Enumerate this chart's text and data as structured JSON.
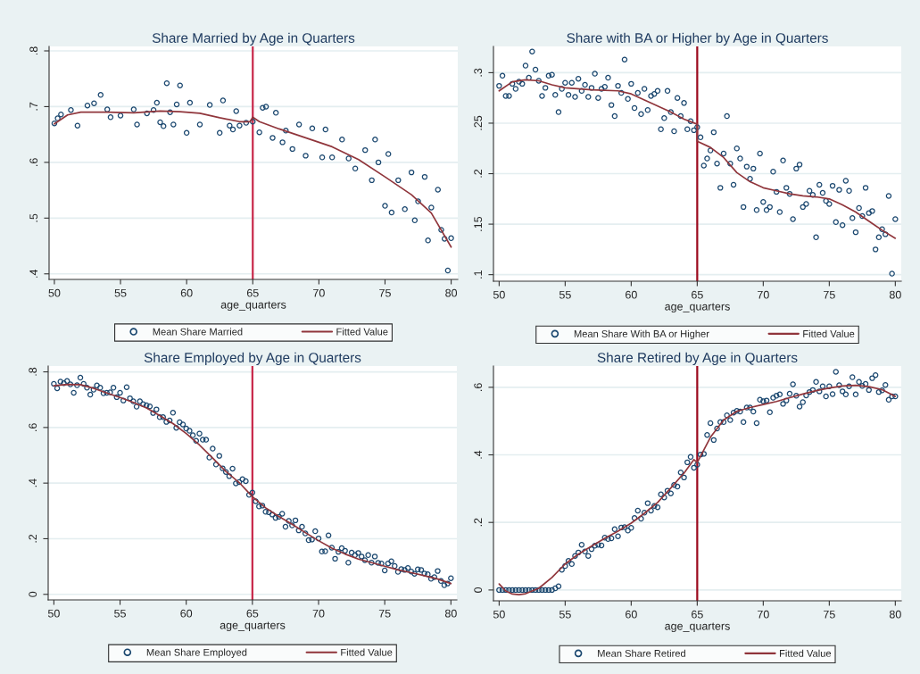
{
  "chart_data": [
    {
      "type": "scatter",
      "title": "Share Married by Age in Quarters",
      "xlabel": "age_quarters",
      "grid": "y",
      "legend": "bottom",
      "xlim": [
        49.6,
        80.5
      ],
      "xticks": [
        50,
        55,
        60,
        65,
        70,
        75,
        80
      ],
      "ylim": [
        0.39,
        0.808
      ],
      "yticks": [
        {
          "value": 0.4,
          "label": ".4"
        },
        {
          "value": 0.5,
          "label": ".5"
        },
        {
          "value": 0.6,
          "label": ".6"
        },
        {
          "value": 0.7,
          "label": ".7"
        },
        {
          "value": 0.8,
          "label": ".8"
        }
      ],
      "ref_lines": [
        {
          "axis": "x",
          "value": 65,
          "color": "#c8284a"
        }
      ],
      "series": [
        {
          "marker": "circle",
          "name": "Mean Share Married",
          "color": "#1a476f",
          "x": [
            50,
            50.25,
            50.5,
            51.25,
            51.75,
            52.5,
            53,
            53.5,
            54,
            54.25,
            55,
            56,
            56.25,
            57,
            57.5,
            57.75,
            58,
            58.25,
            58.5,
            58.75,
            59,
            59.25,
            59.5,
            60,
            60.25,
            61,
            61.75,
            62.5,
            62.75,
            63.25,
            63.5,
            63.75,
            64,
            64.5,
            65,
            65.5,
            65.75,
            66,
            66.5,
            66.75,
            67.25,
            67.5,
            68,
            68.5,
            69,
            69.5,
            70.25,
            70.5,
            71,
            71.75,
            72.25,
            72.75,
            73.5,
            74,
            74.25,
            74.5,
            75,
            75.25,
            75.5,
            76,
            76.5,
            77,
            77.25,
            77.5,
            78,
            78.25,
            78.5,
            79,
            79.25,
            79.5,
            79.75,
            80
          ],
          "values": [
            0.67,
            0.679,
            0.686,
            0.694,
            0.666,
            0.702,
            0.706,
            0.721,
            0.695,
            0.681,
            0.684,
            0.695,
            0.668,
            0.688,
            0.694,
            0.707,
            0.672,
            0.665,
            0.742,
            0.69,
            0.668,
            0.704,
            0.738,
            0.653,
            0.707,
            0.668,
            0.703,
            0.653,
            0.711,
            0.666,
            0.659,
            0.692,
            0.666,
            0.671,
            0.673,
            0.654,
            0.698,
            0.7,
            0.644,
            0.689,
            0.636,
            0.657,
            0.624,
            0.668,
            0.612,
            0.661,
            0.609,
            0.659,
            0.609,
            0.641,
            0.607,
            0.589,
            0.622,
            0.568,
            0.641,
            0.6,
            0.522,
            0.615,
            0.51,
            0.568,
            0.516,
            0.582,
            0.496,
            0.53,
            0.574,
            0.46,
            0.519,
            0.551,
            0.479,
            0.463,
            0.406,
            0.464
          ]
        },
        {
          "type": "line",
          "name": "Fitted Value",
          "color": "#90353b",
          "x": [
            50,
            51,
            52,
            54,
            56,
            58,
            59.5,
            61,
            62.5,
            64,
            64.8,
            65,
            65.5,
            67,
            69,
            71,
            73,
            75,
            77,
            78.5,
            80
          ],
          "values": [
            0.669,
            0.685,
            0.69,
            0.69,
            0.689,
            0.692,
            0.691,
            0.688,
            0.68,
            0.673,
            0.673,
            0.681,
            0.673,
            0.66,
            0.644,
            0.628,
            0.605,
            0.574,
            0.542,
            0.509,
            0.448
          ]
        }
      ]
    },
    {
      "type": "scatter",
      "title": "Share with BA or Higher by Age in Quarters",
      "xlabel": "age_quarters",
      "grid": "y",
      "legend": "bottom",
      "xlim": [
        49.57,
        80.45
      ],
      "xticks": [
        50,
        55,
        60,
        65,
        70,
        75,
        80
      ],
      "ylim": [
        0.0935,
        0.326
      ],
      "yticks": [
        {
          "value": 0.1,
          "label": ".1"
        },
        {
          "value": 0.15,
          "label": ".15"
        },
        {
          "value": 0.2,
          "label": ".2"
        },
        {
          "value": 0.25,
          "label": ".25"
        },
        {
          "value": 0.3,
          "label": ".3"
        }
      ],
      "ref_lines": [
        {
          "axis": "x",
          "value": 65,
          "color": "#9b0a1e"
        }
      ],
      "x": [
        50,
        50.25,
        50.5,
        50.75,
        51,
        51.25,
        51.5,
        51.75,
        52,
        52.25,
        52.5,
        52.75,
        53,
        53.25,
        53.5,
        53.75,
        54,
        54.25,
        54.5,
        54.75,
        55,
        55.25,
        55.5,
        55.75,
        56,
        56.25,
        56.5,
        56.75,
        57,
        57.25,
        57.5,
        57.75,
        58,
        58.25,
        58.5,
        58.75,
        59,
        59.25,
        59.5,
        59.75,
        60,
        60.25,
        60.5,
        60.75,
        61,
        61.25,
        61.5,
        61.75,
        62,
        62.25,
        62.5,
        62.75,
        63,
        63.25,
        63.5,
        63.75,
        64,
        64.25,
        64.5,
        64.75,
        65,
        65.25,
        65.5,
        65.75,
        66,
        66.25,
        66.5,
        66.75,
        67,
        67.25,
        67.5,
        67.75,
        68,
        68.25,
        68.5,
        68.75,
        69,
        69.25,
        69.5,
        69.75,
        70,
        70.25,
        70.5,
        70.75,
        71,
        71.25,
        71.5,
        71.75,
        72,
        72.25,
        72.5,
        72.75,
        73,
        73.25,
        73.5,
        73.75,
        74,
        74.25,
        74.5,
        74.75,
        75,
        75.25,
        75.5,
        75.75,
        76,
        76.25,
        76.5,
        76.75,
        77,
        77.25,
        77.5,
        77.75,
        78,
        78.25,
        78.5,
        78.75,
        79,
        79.25,
        79.5,
        79.75,
        80
      ],
      "series": [
        {
          "marker": "circle",
          "name": "Mean Share With BA or Higher",
          "color": "#1a476f",
          "values": [
            0.287,
            0.297,
            0.277,
            0.277,
            0.289,
            0.284,
            0.291,
            0.289,
            0.307,
            0.295,
            0.321,
            0.303,
            0.292,
            0.277,
            0.285,
            0.297,
            0.298,
            0.278,
            0.261,
            0.284,
            0.29,
            0.278,
            0.29,
            0.276,
            0.294,
            0.282,
            0.288,
            0.276,
            0.285,
            0.299,
            0.275,
            0.284,
            0.286,
            0.295,
            0.268,
            0.257,
            0.287,
            0.28,
            0.313,
            0.274,
            0.289,
            0.265,
            0.28,
            0.259,
            0.284,
            0.263,
            0.277,
            0.279,
            0.282,
            0.244,
            0.255,
            0.282,
            0.261,
            0.242,
            0.275,
            0.257,
            0.27,
            0.244,
            0.252,
            0.243,
            0.246,
            0.236,
            0.208,
            0.215,
            0.223,
            0.241,
            0.21,
            0.186,
            0.22,
            0.257,
            0.21,
            0.189,
            0.225,
            0.215,
            0.167,
            0.207,
            0.195,
            0.205,
            0.164,
            0.22,
            0.172,
            0.164,
            0.167,
            0.202,
            0.182,
            0.162,
            0.213,
            0.186,
            0.18,
            0.155,
            0.205,
            0.209,
            0.167,
            0.17,
            0.183,
            0.179,
            0.137,
            0.189,
            0.181,
            0.173,
            0.17,
            0.188,
            0.152,
            0.184,
            0.149,
            0.193,
            0.183,
            0.156,
            0.142,
            0.166,
            0.158,
            0.186,
            0.161,
            0.163,
            0.125,
            0.137,
            0.145,
            0.14,
            0.178,
            0.101,
            0.155
          ]
        },
        {
          "type": "line",
          "name": "Fitted Value",
          "color": "#90353b",
          "x": [
            50,
            51,
            52,
            53,
            54,
            55,
            57,
            59,
            60,
            61,
            62,
            63,
            64,
            65,
            65,
            66,
            67,
            68,
            69,
            70,
            71,
            72,
            73,
            74,
            75,
            76,
            77,
            78,
            79,
            80
          ],
          "values": [
            0.282,
            0.291,
            0.293,
            0.292,
            0.288,
            0.285,
            0.283,
            0.282,
            0.279,
            0.273,
            0.267,
            0.261,
            0.254,
            0.249,
            0.232,
            0.226,
            0.216,
            0.201,
            0.192,
            0.186,
            0.183,
            0.18,
            0.178,
            0.177,
            0.175,
            0.169,
            0.162,
            0.153,
            0.144,
            0.136
          ]
        }
      ]
    },
    {
      "type": "scatter",
      "title": "Share Employed by Age in Quarters",
      "xlabel": "age_quarters",
      "grid": "y",
      "legend": "bottom",
      "xlim": [
        49.57,
        80.45
      ],
      "xticks": [
        50,
        55,
        60,
        65,
        70,
        75,
        80
      ],
      "ylim": [
        -0.02,
        0.821
      ],
      "yticks": [
        0,
        {
          "value": 0.2,
          "label": ".2"
        },
        {
          "value": 0.4,
          "label": ".4"
        },
        {
          "value": 0.6,
          "label": ".6"
        },
        {
          "value": 0.8,
          "label": ".8"
        }
      ],
      "ref_lines": [
        {
          "axis": "x",
          "value": 65,
          "color": "#c8284a"
        }
      ],
      "x": [
        50,
        50.25,
        50.5,
        50.75,
        51,
        51.25,
        51.5,
        51.75,
        52,
        52.25,
        52.5,
        52.75,
        53,
        53.25,
        53.5,
        53.75,
        54,
        54.25,
        54.5,
        54.75,
        55,
        55.25,
        55.5,
        55.75,
        56,
        56.25,
        56.5,
        56.75,
        57,
        57.25,
        57.5,
        57.75,
        58,
        58.25,
        58.5,
        58.75,
        59,
        59.25,
        59.5,
        59.75,
        60,
        60.25,
        60.5,
        60.75,
        61,
        61.25,
        61.5,
        61.75,
        62,
        62.25,
        62.5,
        62.75,
        63,
        63.25,
        63.5,
        63.75,
        64,
        64.25,
        64.5,
        64.75,
        65,
        65.25,
        65.5,
        65.75,
        66,
        66.25,
        66.5,
        66.75,
        67,
        67.25,
        67.5,
        67.75,
        68,
        68.25,
        68.5,
        68.75,
        69,
        69.25,
        69.5,
        69.75,
        70,
        70.25,
        70.5,
        70.75,
        71,
        71.25,
        71.5,
        71.75,
        72,
        72.25,
        72.5,
        72.75,
        73,
        73.25,
        73.5,
        73.75,
        74,
        74.25,
        74.5,
        74.75,
        75,
        75.25,
        75.5,
        75.75,
        76,
        76.25,
        76.5,
        76.75,
        77,
        77.25,
        77.5,
        77.75,
        78,
        78.25,
        78.5,
        78.75,
        79,
        79.25,
        79.5,
        79.75,
        80
      ],
      "series": [
        {
          "marker": "circle",
          "name": "Mean Share Employed",
          "color": "#1a476f",
          "values": [
            0.757,
            0.741,
            0.765,
            0.759,
            0.767,
            0.755,
            0.725,
            0.752,
            0.779,
            0.757,
            0.743,
            0.718,
            0.736,
            0.751,
            0.743,
            0.723,
            0.725,
            0.726,
            0.743,
            0.709,
            0.725,
            0.697,
            0.745,
            0.705,
            0.694,
            0.675,
            0.694,
            0.684,
            0.68,
            0.676,
            0.652,
            0.665,
            0.637,
            0.637,
            0.62,
            0.625,
            0.653,
            0.599,
            0.619,
            0.611,
            0.596,
            0.588,
            0.572,
            0.552,
            0.578,
            0.556,
            0.556,
            0.492,
            0.524,
            0.467,
            0.498,
            0.453,
            0.44,
            0.425,
            0.452,
            0.399,
            0.404,
            0.414,
            0.407,
            0.358,
            0.366,
            0.335,
            0.316,
            0.319,
            0.297,
            0.295,
            0.287,
            0.275,
            0.279,
            0.29,
            0.243,
            0.264,
            0.248,
            0.266,
            0.23,
            0.243,
            0.219,
            0.195,
            0.197,
            0.227,
            0.201,
            0.154,
            0.155,
            0.212,
            0.168,
            0.128,
            0.153,
            0.166,
            0.157,
            0.114,
            0.15,
            0.141,
            0.149,
            0.136,
            0.123,
            0.141,
            0.114,
            0.136,
            0.113,
            0.111,
            0.086,
            0.111,
            0.119,
            0.102,
            0.081,
            0.091,
            0.088,
            0.095,
            0.082,
            0.074,
            0.09,
            0.088,
            0.075,
            0.072,
            0.056,
            0.062,
            0.084,
            0.048,
            0.033,
            0.039,
            0.058
          ]
        },
        {
          "type": "line",
          "name": "Fitted Value",
          "color": "#90353b",
          "x": [
            50,
            51,
            52,
            53,
            54,
            55,
            56,
            57,
            58,
            59,
            60,
            61,
            62,
            63,
            64,
            65,
            66,
            67,
            68,
            69,
            70,
            71,
            72,
            73,
            74,
            75,
            76,
            77,
            78,
            79,
            80
          ],
          "values": [
            0.75,
            0.755,
            0.754,
            0.741,
            0.724,
            0.708,
            0.69,
            0.67,
            0.643,
            0.614,
            0.578,
            0.537,
            0.49,
            0.442,
            0.402,
            0.351,
            0.311,
            0.28,
            0.252,
            0.222,
            0.193,
            0.166,
            0.145,
            0.127,
            0.114,
            0.101,
            0.088,
            0.078,
            0.067,
            0.055,
            0.039
          ]
        }
      ]
    },
    {
      "type": "scatter",
      "title": "Share Retired by Age in Quarters",
      "xlabel": "age_quarters",
      "grid": "y",
      "legend": "bottom",
      "xlim": [
        49.57,
        80.45
      ],
      "xticks": [
        50,
        55,
        60,
        65,
        70,
        75,
        80
      ],
      "ylim": [
        -0.032,
        0.663
      ],
      "yticks": [
        0,
        {
          "value": 0.2,
          "label": ".2"
        },
        {
          "value": 0.4,
          "label": ".4"
        },
        {
          "value": 0.6,
          "label": ".6"
        }
      ],
      "ref_lines": [
        {
          "axis": "x",
          "value": 65,
          "color": "#9b0a1e"
        }
      ],
      "x": [
        50,
        50.25,
        50.5,
        50.75,
        51,
        51.25,
        51.5,
        51.75,
        52,
        52.25,
        52.5,
        52.75,
        53,
        53.25,
        53.5,
        53.75,
        54,
        54.25,
        54.5,
        54.75,
        55,
        55.25,
        55.5,
        55.75,
        56,
        56.25,
        56.5,
        56.75,
        57,
        57.25,
        57.5,
        57.75,
        58,
        58.25,
        58.5,
        58.75,
        59,
        59.25,
        59.5,
        59.75,
        60,
        60.25,
        60.5,
        60.75,
        61,
        61.25,
        61.5,
        61.75,
        62,
        62.25,
        62.5,
        62.75,
        63,
        63.25,
        63.5,
        63.75,
        64,
        64.25,
        64.5,
        64.75,
        65,
        65.25,
        65.5,
        65.75,
        66,
        66.25,
        66.5,
        66.75,
        67,
        67.25,
        67.5,
        67.75,
        68,
        68.25,
        68.5,
        68.75,
        69,
        69.25,
        69.5,
        69.75,
        70,
        70.25,
        70.5,
        70.75,
        71,
        71.25,
        71.5,
        71.75,
        72,
        72.25,
        72.5,
        72.75,
        73,
        73.25,
        73.5,
        73.75,
        74,
        74.25,
        74.5,
        74.75,
        75,
        75.25,
        75.5,
        75.75,
        76,
        76.25,
        76.5,
        76.75,
        77,
        77.25,
        77.5,
        77.75,
        78,
        78.25,
        78.5,
        78.75,
        79,
        79.25,
        79.5,
        79.75,
        80
      ],
      "series": [
        {
          "marker": "circle",
          "name": "Mean Share Retired",
          "color": "#1a476f",
          "values": [
            0,
            0,
            0,
            0,
            0,
            0,
            0,
            0,
            0,
            0,
            0,
            0,
            0,
            0,
            0,
            0,
            0,
            0.005,
            0.011,
            0.06,
            0.071,
            0.086,
            0.077,
            0.101,
            0.111,
            0.134,
            0.114,
            0.101,
            0.121,
            0.131,
            0.134,
            0.132,
            0.155,
            0.151,
            0.153,
            0.18,
            0.159,
            0.185,
            0.186,
            0.176,
            0.184,
            0.213,
            0.235,
            0.211,
            0.229,
            0.257,
            0.235,
            0.249,
            0.245,
            0.283,
            0.274,
            0.294,
            0.286,
            0.311,
            0.306,
            0.348,
            0.333,
            0.378,
            0.394,
            0.362,
            0.371,
            0.401,
            0.403,
            0.459,
            0.494,
            0.444,
            0.478,
            0.497,
            0.497,
            0.517,
            0.503,
            0.525,
            0.53,
            0.528,
            0.497,
            0.54,
            0.54,
            0.528,
            0.494,
            0.563,
            0.559,
            0.561,
            0.526,
            0.569,
            0.575,
            0.579,
            0.551,
            0.561,
            0.581,
            0.609,
            0.575,
            0.543,
            0.556,
            0.576,
            0.586,
            0.592,
            0.616,
            0.588,
            0.603,
            0.573,
            0.603,
            0.58,
            0.646,
            0.606,
            0.588,
            0.579,
            0.603,
            0.63,
            0.579,
            0.616,
            0.604,
            0.61,
            0.592,
            0.627,
            0.636,
            0.586,
            0.591,
            0.607,
            0.563,
            0.573,
            0.573
          ]
        },
        {
          "type": "line",
          "name": "Fitted Value",
          "color": "#90353b",
          "x": [
            50,
            50.5,
            51,
            51.5,
            52,
            53,
            54,
            55,
            56,
            57,
            58,
            59,
            60,
            61,
            62,
            63,
            64,
            64.75,
            65,
            66,
            67,
            68,
            69,
            70,
            71,
            72,
            73,
            74,
            75,
            76,
            77,
            78,
            79,
            80
          ],
          "values": [
            0.018,
            -0.003,
            -0.012,
            -0.014,
            -0.011,
            0.005,
            0.037,
            0.077,
            0.106,
            0.13,
            0.153,
            0.174,
            0.198,
            0.227,
            0.259,
            0.302,
            0.346,
            0.386,
            0.377,
            0.452,
            0.503,
            0.529,
            0.54,
            0.549,
            0.558,
            0.569,
            0.58,
            0.59,
            0.598,
            0.604,
            0.606,
            0.602,
            0.593,
            0.573
          ]
        }
      ]
    }
  ]
}
